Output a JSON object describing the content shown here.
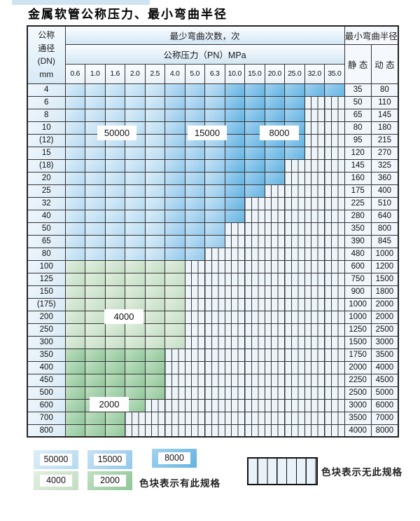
{
  "title": "金属软管公称压力、最小弯曲半径",
  "table": {
    "corner_header": [
      "公称",
      "通径",
      "(DN)",
      "mm"
    ],
    "bend_times_header": "最少弯曲次数，次",
    "pressure_header": "公称压力（PN）MPa",
    "radius_header": "最小弯曲半径",
    "static_label": "静 态",
    "dynamic_label": "动 态",
    "pressure_columns": [
      "0.6",
      "1.0",
      "1.6",
      "2.0",
      "2.5",
      "4.0",
      "5.0",
      "6.3",
      "10.0",
      "15.0",
      "20.0",
      "25.0",
      "32.0",
      "35.0"
    ],
    "rows": [
      {
        "dn": "4",
        "colored": 14,
        "region": "blue",
        "static": "35",
        "dynamic": "80"
      },
      {
        "dn": "6",
        "colored": 12,
        "region": "blue",
        "static": "50",
        "dynamic": "110"
      },
      {
        "dn": "8",
        "colored": 12,
        "region": "blue",
        "static": "65",
        "dynamic": "145"
      },
      {
        "dn": "10",
        "colored": 12,
        "region": "blue",
        "static": "80",
        "dynamic": "180"
      },
      {
        "dn": "(12)",
        "colored": 12,
        "region": "blue",
        "static": "95",
        "dynamic": "215"
      },
      {
        "dn": "15",
        "colored": 12,
        "region": "blue",
        "static": "120",
        "dynamic": "270"
      },
      {
        "dn": "(18)",
        "colored": 11,
        "region": "blue",
        "static": "145",
        "dynamic": "325"
      },
      {
        "dn": "20",
        "colored": 11,
        "region": "blue",
        "static": "160",
        "dynamic": "360"
      },
      {
        "dn": "25",
        "colored": 10,
        "region": "blue",
        "static": "175",
        "dynamic": "400"
      },
      {
        "dn": "32",
        "colored": 9,
        "region": "blue",
        "static": "225",
        "dynamic": "510"
      },
      {
        "dn": "40",
        "colored": 9,
        "region": "blue",
        "static": "280",
        "dynamic": "640"
      },
      {
        "dn": "50",
        "colored": 8,
        "region": "blue",
        "static": "350",
        "dynamic": "800"
      },
      {
        "dn": "65",
        "colored": 8,
        "region": "blue",
        "static": "390",
        "dynamic": "845"
      },
      {
        "dn": "80",
        "colored": 7,
        "region": "blue",
        "static": "480",
        "dynamic": "1000"
      },
      {
        "dn": "100",
        "colored": 6,
        "region": "green1",
        "static": "600",
        "dynamic": "1200"
      },
      {
        "dn": "125",
        "colored": 6,
        "region": "green1",
        "static": "750",
        "dynamic": "1500"
      },
      {
        "dn": "150",
        "colored": 6,
        "region": "green1",
        "static": "900",
        "dynamic": "1800"
      },
      {
        "dn": "(175)",
        "colored": 6,
        "region": "green1",
        "static": "1000",
        "dynamic": "2000"
      },
      {
        "dn": "200",
        "colored": 6,
        "region": "green1",
        "static": "1000",
        "dynamic": "2000"
      },
      {
        "dn": "250",
        "colored": 6,
        "region": "green1",
        "static": "1250",
        "dynamic": "2500"
      },
      {
        "dn": "300",
        "colored": 6,
        "region": "green1",
        "static": "1500",
        "dynamic": "3000"
      },
      {
        "dn": "350",
        "colored": 5,
        "region": "green2",
        "static": "1750",
        "dynamic": "3500"
      },
      {
        "dn": "400",
        "colored": 5,
        "region": "green2",
        "static": "2000",
        "dynamic": "4000"
      },
      {
        "dn": "450",
        "colored": 5,
        "region": "green2",
        "static": "2250",
        "dynamic": "4500"
      },
      {
        "dn": "500",
        "colored": 5,
        "region": "green2",
        "static": "2500",
        "dynamic": "5000"
      },
      {
        "dn": "600",
        "colored": 4,
        "region": "green2",
        "static": "3000",
        "dynamic": "6000"
      },
      {
        "dn": "700",
        "colored": 3,
        "region": "green2",
        "static": "3500",
        "dynamic": "7000"
      },
      {
        "dn": "800",
        "colored": 3,
        "region": "green2",
        "static": "4000",
        "dynamic": "8000"
      }
    ]
  },
  "region_labels": [
    {
      "text": "50000"
    },
    {
      "text": "15000"
    },
    {
      "text": "8000"
    },
    {
      "text": "4000"
    },
    {
      "text": "2000"
    }
  ],
  "legend": {
    "have_spec_items": [
      {
        "value": "50000",
        "color_key": "blue1"
      },
      {
        "value": "15000",
        "color_key": "blue2"
      },
      {
        "value": "8000",
        "color_key": "blue3"
      },
      {
        "value": "4000",
        "color_key": "green1"
      },
      {
        "value": "2000",
        "color_key": "green2"
      }
    ],
    "have_spec_text": "色块表示有此规格",
    "no_spec_text": "色块表示无此规格"
  },
  "colors": {
    "blue1": {
      "light": "#ddeef9",
      "base": "#b5daf1"
    },
    "blue2": {
      "light": "#c6e2f5",
      "base": "#92c8ec"
    },
    "blue3": {
      "light": "#a3d2f0",
      "base": "#62b3e2"
    },
    "green1": {
      "light": "#e2efe0",
      "base": "#c3ddc3"
    },
    "green2": {
      "light": "#c0dfc2",
      "base": "#8fc79a"
    }
  }
}
